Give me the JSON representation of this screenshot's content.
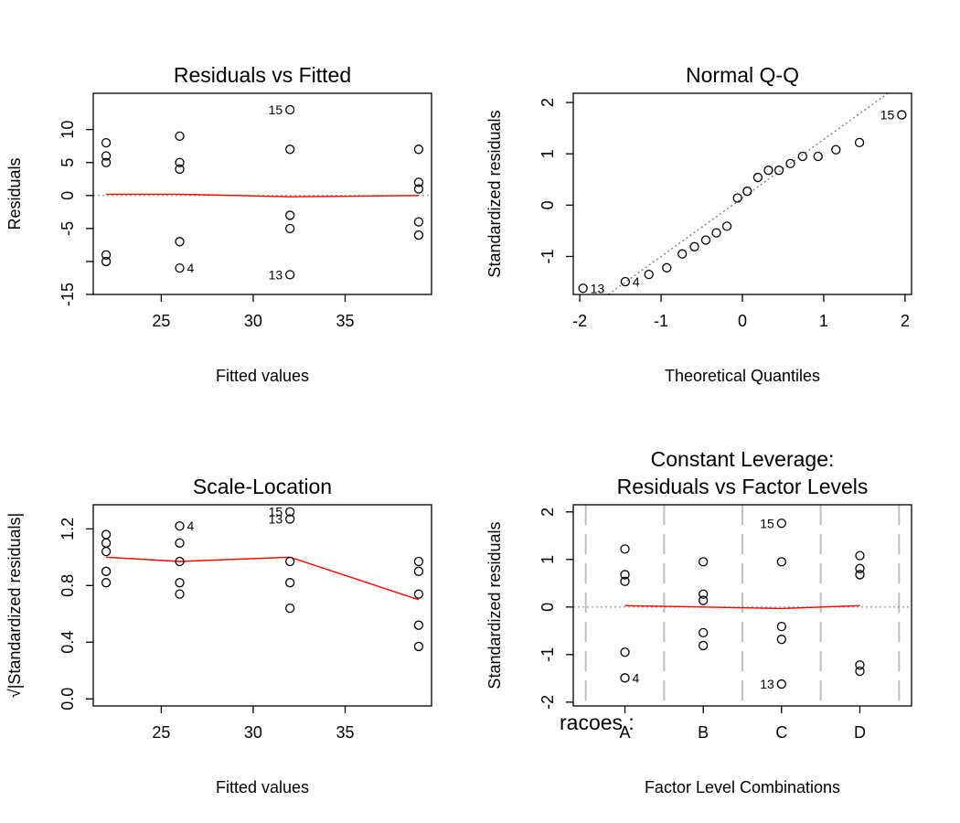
{
  "colors": {
    "points": "#000000",
    "smooth": "#ff0000",
    "reference": "#808080",
    "divider": "#bebebe"
  },
  "chart_data": [
    {
      "type": "scatter",
      "panel": "residuals-vs-fitted",
      "title": "Residuals vs Fitted",
      "xlabel": "Fitted values",
      "ylabel": "Residuals",
      "xlim": [
        21.3,
        39.7
      ],
      "ylim": [
        -15.0,
        15.5
      ],
      "xticks": [
        25,
        30,
        35
      ],
      "xtick_labels": [
        "25",
        "30",
        "35"
      ],
      "yticks": [
        -15,
        -10,
        -5,
        0,
        5,
        10
      ],
      "ytick_labels": [
        "-15",
        "",
        "-5",
        "0",
        "5",
        "10"
      ],
      "points": [
        {
          "x": 22,
          "y": 8
        },
        {
          "x": 22,
          "y": 6
        },
        {
          "x": 22,
          "y": 5
        },
        {
          "x": 22,
          "y": -9
        },
        {
          "x": 22,
          "y": -10
        },
        {
          "x": 26,
          "y": 9
        },
        {
          "x": 26,
          "y": 5
        },
        {
          "x": 26,
          "y": 4
        },
        {
          "x": 26,
          "y": -7
        },
        {
          "x": 26,
          "y": -11
        },
        {
          "x": 32,
          "y": 13
        },
        {
          "x": 32,
          "y": 7
        },
        {
          "x": 32,
          "y": -3
        },
        {
          "x": 32,
          "y": -5
        },
        {
          "x": 32,
          "y": -12
        },
        {
          "x": 39,
          "y": 7
        },
        {
          "x": 39,
          "y": 2
        },
        {
          "x": 39,
          "y": 1
        },
        {
          "x": 39,
          "y": -4
        },
        {
          "x": 39,
          "y": -6
        }
      ],
      "smooth": [
        {
          "x": 22,
          "y": 0.2
        },
        {
          "x": 26,
          "y": 0.2
        },
        {
          "x": 32,
          "y": -0.2
        },
        {
          "x": 39,
          "y": 0.0
        }
      ],
      "hline": 0,
      "annotations": [
        {
          "label": "15",
          "x": 32,
          "y": 13,
          "side": "left"
        },
        {
          "label": "4",
          "x": 26,
          "y": -11,
          "side": "right"
        },
        {
          "label": "13",
          "x": 32,
          "y": -12,
          "side": "left"
        }
      ]
    },
    {
      "type": "scatter",
      "panel": "normal-qq",
      "title": "Normal Q-Q",
      "xlabel": "Theoretical Quantiles",
      "ylabel": "Standardized residuals",
      "xlim": [
        -2.08,
        2.08
      ],
      "ylim": [
        -1.74,
        2.18
      ],
      "xticks": [
        -2,
        -1,
        0,
        1,
        2
      ],
      "xtick_labels": [
        "-2",
        "-1",
        "0",
        "1",
        "2"
      ],
      "yticks": [
        -1,
        0,
        1,
        2
      ],
      "ytick_labels": [
        "-1",
        "0",
        "1",
        "2"
      ],
      "points": [
        {
          "x": -1.96,
          "y": -1.62
        },
        {
          "x": -1.44,
          "y": -1.49
        },
        {
          "x": -1.15,
          "y": -1.35
        },
        {
          "x": -0.93,
          "y": -1.22
        },
        {
          "x": -0.74,
          "y": -0.95
        },
        {
          "x": -0.59,
          "y": -0.81
        },
        {
          "x": -0.45,
          "y": -0.68
        },
        {
          "x": -0.32,
          "y": -0.54
        },
        {
          "x": -0.19,
          "y": -0.41
        },
        {
          "x": -0.06,
          "y": 0.14
        },
        {
          "x": 0.06,
          "y": 0.27
        },
        {
          "x": 0.19,
          "y": 0.54
        },
        {
          "x": 0.32,
          "y": 0.68
        },
        {
          "x": 0.45,
          "y": 0.68
        },
        {
          "x": 0.59,
          "y": 0.81
        },
        {
          "x": 0.74,
          "y": 0.95
        },
        {
          "x": 0.93,
          "y": 0.95
        },
        {
          "x": 1.15,
          "y": 1.08
        },
        {
          "x": 1.44,
          "y": 1.22
        },
        {
          "x": 1.96,
          "y": 1.76
        }
      ],
      "reference_line": {
        "intercept": 0.14,
        "slope": 1.14
      },
      "annotations": [
        {
          "label": "15",
          "x": 1.96,
          "y": 1.76,
          "side": "left"
        },
        {
          "label": "4",
          "x": -1.44,
          "y": -1.49,
          "side": "right"
        },
        {
          "label": "13",
          "x": -1.96,
          "y": -1.62,
          "side": "right"
        }
      ]
    },
    {
      "type": "scatter",
      "panel": "scale-location",
      "title": "Scale-Location",
      "xlabel": "Fitted values",
      "ylabel": "√|Standardized residuals|",
      "xlim": [
        21.3,
        39.7
      ],
      "ylim": [
        -0.05,
        1.37
      ],
      "xticks": [
        25,
        30,
        35
      ],
      "xtick_labels": [
        "25",
        "30",
        "35"
      ],
      "yticks": [
        0.0,
        0.4,
        0.8,
        1.2
      ],
      "ytick_labels": [
        "0.0",
        "0.4",
        "0.8",
        "1.2"
      ],
      "points": [
        {
          "x": 22,
          "y": 1.16
        },
        {
          "x": 22,
          "y": 1.1
        },
        {
          "x": 22,
          "y": 1.04
        },
        {
          "x": 22,
          "y": 0.9
        },
        {
          "x": 22,
          "y": 0.82
        },
        {
          "x": 26,
          "y": 1.22
        },
        {
          "x": 26,
          "y": 1.1
        },
        {
          "x": 26,
          "y": 0.97
        },
        {
          "x": 26,
          "y": 0.82
        },
        {
          "x": 26,
          "y": 0.74
        },
        {
          "x": 32,
          "y": 1.32
        },
        {
          "x": 32,
          "y": 1.27
        },
        {
          "x": 32,
          "y": 0.97
        },
        {
          "x": 32,
          "y": 0.82
        },
        {
          "x": 32,
          "y": 0.64
        },
        {
          "x": 39,
          "y": 0.97
        },
        {
          "x": 39,
          "y": 0.9
        },
        {
          "x": 39,
          "y": 0.74
        },
        {
          "x": 39,
          "y": 0.52
        },
        {
          "x": 39,
          "y": 0.37
        }
      ],
      "smooth": [
        {
          "x": 22,
          "y": 1.0
        },
        {
          "x": 26,
          "y": 0.97
        },
        {
          "x": 32,
          "y": 1.0
        },
        {
          "x": 39,
          "y": 0.7
        }
      ],
      "annotations": [
        {
          "label": "15",
          "x": 32,
          "y": 1.32,
          "side": "left"
        },
        {
          "label": "13",
          "x": 32,
          "y": 1.27,
          "side": "left"
        },
        {
          "label": "4",
          "x": 26,
          "y": 1.22,
          "side": "right"
        }
      ]
    },
    {
      "type": "scatter",
      "panel": "constant-leverage",
      "title": [
        "Constant Leverage:",
        "Residuals vs Factor Levels"
      ],
      "xlabel": "Factor Level Combinations",
      "ylabel": "Standardized residuals",
      "factor_label": "racoes :",
      "xlim": [
        0.34,
        4.66
      ],
      "ylim": [
        -2.08,
        2.15
      ],
      "xticks": [
        1,
        2,
        3,
        4
      ],
      "xtick_labels": [
        "A",
        "B",
        "C",
        "D"
      ],
      "yticks": [
        -2,
        -1,
        0,
        1,
        2
      ],
      "ytick_labels": [
        "-2",
        "-1",
        "0",
        "1",
        "2"
      ],
      "dividers": [
        0.5,
        1.5,
        2.5,
        3.5,
        4.5
      ],
      "points": [
        {
          "x": 1,
          "y": 1.22
        },
        {
          "x": 1,
          "y": 0.68
        },
        {
          "x": 1,
          "y": 0.54
        },
        {
          "x": 1,
          "y": -0.95
        },
        {
          "x": 1,
          "y": -1.49
        },
        {
          "x": 2,
          "y": 0.95
        },
        {
          "x": 2,
          "y": 0.27
        },
        {
          "x": 2,
          "y": 0.14
        },
        {
          "x": 2,
          "y": -0.54
        },
        {
          "x": 2,
          "y": -0.81
        },
        {
          "x": 3,
          "y": 1.76
        },
        {
          "x": 3,
          "y": 0.95
        },
        {
          "x": 3,
          "y": -0.41
        },
        {
          "x": 3,
          "y": -0.68
        },
        {
          "x": 3,
          "y": -1.62
        },
        {
          "x": 4,
          "y": 1.08
        },
        {
          "x": 4,
          "y": 0.81
        },
        {
          "x": 4,
          "y": 0.68
        },
        {
          "x": 4,
          "y": -1.22
        },
        {
          "x": 4,
          "y": -1.35
        }
      ],
      "smooth": [
        {
          "x": 1,
          "y": 0.03
        },
        {
          "x": 2,
          "y": 0.0
        },
        {
          "x": 3,
          "y": -0.03
        },
        {
          "x": 4,
          "y": 0.03
        }
      ],
      "hline": 0,
      "annotations": [
        {
          "label": "15",
          "x": 3,
          "y": 1.76,
          "side": "left"
        },
        {
          "label": "4",
          "x": 1,
          "y": -1.49,
          "side": "right"
        },
        {
          "label": "13",
          "x": 3,
          "y": -1.62,
          "side": "left"
        }
      ]
    }
  ]
}
